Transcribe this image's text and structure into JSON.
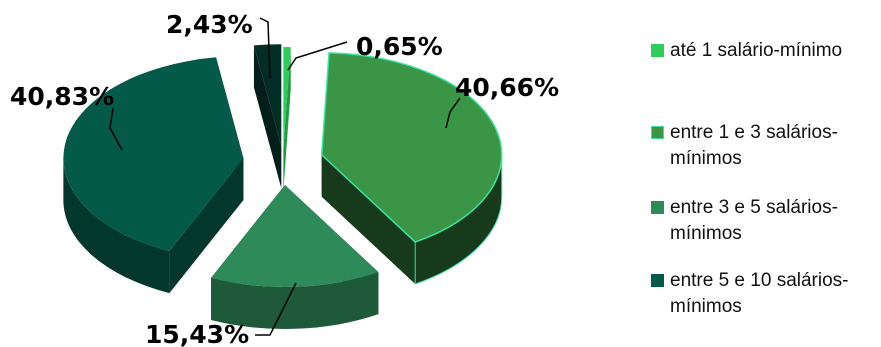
{
  "chart_data": {
    "type": "pie",
    "style": "3d-exploded",
    "title": "",
    "slices": [
      {
        "label": "até 1 salário-mínimo",
        "value": 0.65,
        "data_label": "0,65%",
        "color": "#2ecc5a",
        "side_color": "#1f9b40"
      },
      {
        "label": "entre 1 e 3 salários-mínimos",
        "value": 40.66,
        "data_label": "40,66%",
        "color": "#3a9646",
        "side_color": "#17391c",
        "outline": "#3fe0a0"
      },
      {
        "label": "entre 3 e 5 salários-mínimos",
        "value": 15.43,
        "data_label": "15,43%",
        "color": "#2f8a5a",
        "side_color": "#1e5a3a"
      },
      {
        "label": "entre 5 e 10 salários-mínimos",
        "value": 40.83,
        "data_label": "40,83%",
        "color": "#035a48",
        "side_color": "#02372c"
      },
      {
        "label": "",
        "value": 2.43,
        "data_label": "2,43%",
        "color": "#032e26",
        "side_color": "#021f1a"
      }
    ],
    "legend_position": "right"
  }
}
